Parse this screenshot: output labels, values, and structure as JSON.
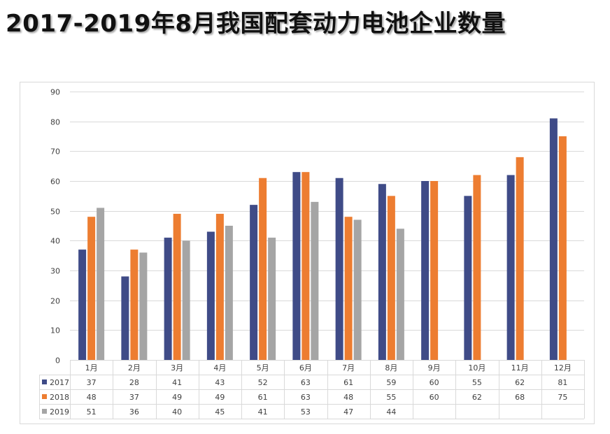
{
  "title": "2017-2019年8月我国配套动力电池企业数量",
  "chart_data": {
    "type": "bar",
    "categories": [
      "1月",
      "2月",
      "3月",
      "4月",
      "5月",
      "6月",
      "7月",
      "8月",
      "9月",
      "10月",
      "11月",
      "12月"
    ],
    "series": [
      {
        "name": "2017",
        "color": "#3f4b87",
        "values": [
          37,
          28,
          41,
          43,
          52,
          63,
          61,
          59,
          60,
          55,
          62,
          81
        ]
      },
      {
        "name": "2018",
        "color": "#ed7d31",
        "values": [
          48,
          37,
          49,
          49,
          61,
          63,
          48,
          55,
          60,
          62,
          68,
          75
        ]
      },
      {
        "name": "2019",
        "color": "#a5a5a5",
        "values": [
          51,
          36,
          40,
          45,
          41,
          53,
          47,
          44,
          null,
          null,
          null,
          null
        ]
      }
    ],
    "ylim": [
      0,
      90
    ],
    "yticks": [
      0,
      10,
      20,
      30,
      40,
      50,
      60,
      70,
      80,
      90
    ],
    "grid": true,
    "legend": "data-table"
  }
}
